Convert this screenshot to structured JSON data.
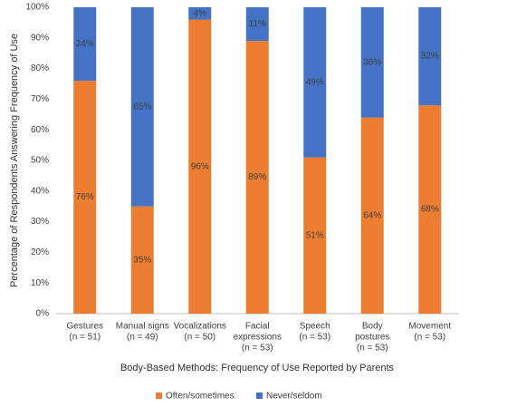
{
  "chart_data": {
    "type": "stacked_bar",
    "y_label": "Percentage of Respondents Answering Frequency of Use",
    "x_label": "Body-Based Methods: Frequency of Use Reported by Parents",
    "categories": [
      [
        "Gestures",
        "(n = 51)"
      ],
      [
        "Manual signs",
        "(n = 49)"
      ],
      [
        "Vocalizations",
        "(n = 50)"
      ],
      [
        "Facial",
        "expressions",
        "(n = 53)"
      ],
      [
        "Speech",
        "(n = 53)"
      ],
      [
        "Body",
        "postures",
        "(n = 53)"
      ],
      [
        "Movement",
        "(n = 53)"
      ]
    ],
    "series": [
      {
        "name": "Often/sometimes",
        "color": "#ed7d31",
        "values": [
          76,
          35,
          96,
          89,
          51,
          64,
          68
        ],
        "value_labels": [
          "76%",
          "35%",
          "96%",
          "89%",
          "51%",
          "64%",
          "68%"
        ]
      },
      {
        "name": "Never/seldom",
        "color": "#4472c4",
        "values": [
          24,
          65,
          4,
          11,
          49,
          36,
          32
        ],
        "value_labels": [
          "24%",
          "65%",
          "4%",
          "11%",
          "49%",
          "36%",
          "32%"
        ]
      }
    ],
    "ylim": [
      0,
      100
    ],
    "yticks": [
      {
        "value": 0,
        "label": "0%"
      },
      {
        "value": 10,
        "label": "10%"
      },
      {
        "value": 20,
        "label": "20%"
      },
      {
        "value": 30,
        "label": "30%"
      },
      {
        "value": 40,
        "label": "40%"
      },
      {
        "value": 50,
        "label": "50%"
      },
      {
        "value": 60,
        "label": "60%"
      },
      {
        "value": 70,
        "label": "70%"
      },
      {
        "value": 80,
        "label": "80%"
      },
      {
        "value": 90,
        "label": "90%"
      },
      {
        "value": 100,
        "label": "100%"
      }
    ],
    "grid": false,
    "legend": "bottom"
  }
}
